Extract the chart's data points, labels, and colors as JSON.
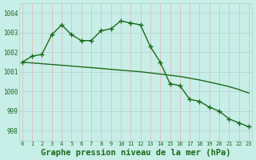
{
  "hours": [
    0,
    1,
    2,
    3,
    4,
    5,
    6,
    7,
    8,
    9,
    10,
    11,
    12,
    13,
    14,
    15,
    16,
    17,
    18,
    19,
    20,
    21,
    22,
    23
  ],
  "pressure_hourly": [
    1001.5,
    1001.8,
    1001.9,
    1002.9,
    1003.4,
    1002.9,
    1002.6,
    1002.6,
    1003.1,
    1003.2,
    1003.6,
    1003.5,
    1003.4,
    1002.3,
    1001.5,
    1000.4,
    1000.3,
    999.6,
    999.5,
    999.2,
    999.0,
    998.6,
    998.4,
    998.2
  ],
  "pressure_trend": [
    1001.5,
    1001.46,
    1001.42,
    1001.38,
    1001.34,
    1001.3,
    1001.26,
    1001.22,
    1001.18,
    1001.13,
    1001.09,
    1001.05,
    1001.01,
    1000.95,
    1000.89,
    1000.83,
    1000.77,
    1000.68,
    1000.59,
    1000.48,
    1000.37,
    1000.25,
    1000.1,
    999.92
  ],
  "ylim": [
    997.5,
    1004.5
  ],
  "yticks": [
    998,
    999,
    1000,
    1001,
    1002,
    1003,
    1004
  ],
  "xlim": [
    -0.3,
    23.3
  ],
  "line_color": "#1a6b1a",
  "bg_color": "#c8eee8",
  "grid_color": "#b0d4cc",
  "red_grid_color": "#e8b0b0",
  "xlabel": "Graphe pression niveau de la mer (hPa)",
  "xlabel_fontsize": 7.5
}
